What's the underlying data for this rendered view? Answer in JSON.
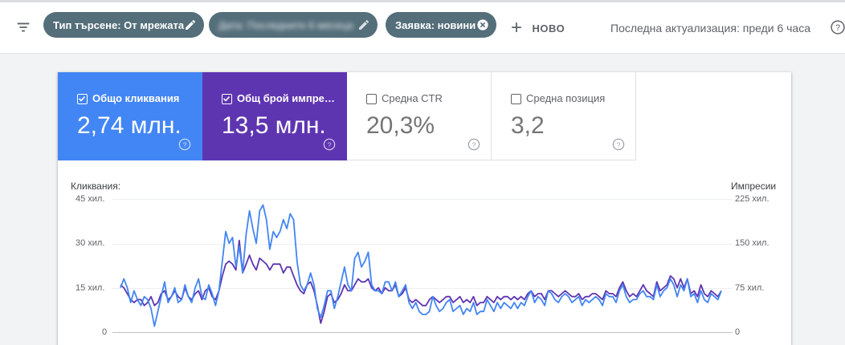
{
  "filters": {
    "chips": [
      {
        "label": "Тип търсене: От мрежата",
        "icon": "edit-icon"
      },
      {
        "label": "Дата: Последните 6 месеца",
        "icon": "edit-icon",
        "blurred": true
      },
      {
        "label": "Заявка: новини",
        "icon": "close-circle-icon"
      }
    ],
    "new_label": "НОВО",
    "last_update": "Последна актуализация: преди 6 часа"
  },
  "metrics": [
    {
      "label": "Общо кликвания",
      "value": "2,74 млн.",
      "checked": true,
      "color": "#4285f4"
    },
    {
      "label": "Общ брой импре…",
      "value": "13,5 млн.",
      "checked": true,
      "color": "#5e35b1"
    },
    {
      "label": "Средна CTR",
      "value": "20,3%",
      "checked": false
    },
    {
      "label": "Средна позиция",
      "value": "3,2",
      "checked": false
    }
  ],
  "chart": {
    "left_title": "Кликвания:",
    "right_title": "Импресии",
    "left_ticks": [
      "45 хил.",
      "30 хил.",
      "15 хил.",
      "0"
    ],
    "right_ticks": [
      "225 хил.",
      "150 хил.",
      "75 хил.",
      "0"
    ]
  },
  "chart_data": {
    "type": "line",
    "y_left": {
      "label": "Кликвания:",
      "range": [
        0,
        45000
      ]
    },
    "y_right": {
      "label": "Импресии",
      "range": [
        0,
        225000
      ]
    },
    "series": [
      {
        "name": "Общо кликвания",
        "axis": "left",
        "color": "#4285f4",
        "values": [
          15000,
          18000,
          15000,
          10000,
          14000,
          11000,
          9000,
          12000,
          11000,
          8000,
          2000,
          7000,
          12000,
          17000,
          10000,
          12000,
          15000,
          10000,
          11000,
          16000,
          12000,
          10000,
          15000,
          18000,
          12000,
          11000,
          16000,
          13000,
          9000,
          14000,
          24000,
          34000,
          30000,
          32000,
          22000,
          29000,
          20000,
          33000,
          41000,
          35000,
          30000,
          41000,
          43000,
          38000,
          28000,
          34000,
          32000,
          34000,
          38000,
          35000,
          40000,
          38000,
          24000,
          16000,
          14000,
          16000,
          20000,
          16000,
          8000,
          5000,
          9000,
          14000,
          14000,
          8000,
          12000,
          17000,
          22000,
          16000,
          14000,
          25000,
          27000,
          22000,
          24000,
          27000,
          16000,
          14000,
          14000,
          13000,
          17000,
          17000,
          14000,
          17000,
          12000,
          14000,
          16000,
          10000,
          8000,
          10000,
          7000,
          6000,
          6000,
          7000,
          12000,
          9000,
          7000,
          8000,
          10000,
          11000,
          7000,
          8000,
          9000,
          6000,
          8000,
          7000,
          10000,
          6000,
          7000,
          7000,
          11000,
          9000,
          7000,
          10000,
          8000,
          10000,
          9000,
          8000,
          10000,
          8000,
          10000,
          9000,
          12000,
          14000,
          10000,
          12000,
          11000,
          9000,
          14000,
          13000,
          11000,
          10000,
          12000,
          13000,
          12000,
          10000,
          11000,
          12000,
          9000,
          11000,
          10000,
          11000,
          12000,
          11000,
          9000,
          13000,
          12000,
          12000,
          10000,
          14000,
          16000,
          12000,
          10000,
          11000,
          11000,
          13000,
          14000,
          12000,
          12000,
          11000,
          16000,
          12000,
          14000,
          15000,
          18000,
          16000,
          12000,
          16000,
          14000,
          18000,
          12000,
          13000,
          10000,
          14000,
          11000,
          10000,
          13000,
          12000,
          11000,
          14000
        ]
      },
      {
        "name": "Общ брой импресии",
        "axis": "right",
        "color": "#5e35b1",
        "values": [
          80000,
          75000,
          65000,
          55000,
          50000,
          55000,
          55000,
          45000,
          50000,
          60000,
          45000,
          50000,
          65000,
          70000,
          55000,
          60000,
          70000,
          60000,
          55000,
          75000,
          60000,
          55000,
          65000,
          70000,
          55000,
          70000,
          75000,
          60000,
          55000,
          70000,
          95000,
          115000,
          120000,
          115000,
          105000,
          155000,
          100000,
          115000,
          130000,
          115000,
          105000,
          125000,
          120000,
          115000,
          105000,
          115000,
          115000,
          115000,
          100000,
          110000,
          110000,
          95000,
          80000,
          70000,
          65000,
          80000,
          85000,
          70000,
          45000,
          15000,
          35000,
          60000,
          65000,
          50000,
          55000,
          65000,
          80000,
          70000,
          70000,
          80000,
          90000,
          85000,
          85000,
          90000,
          75000,
          70000,
          75000,
          65000,
          75000,
          70000,
          70000,
          80000,
          60000,
          65000,
          75000,
          55000,
          50000,
          55000,
          50000,
          45000,
          45000,
          55000,
          60000,
          55000,
          50000,
          55000,
          60000,
          60000,
          50000,
          55000,
          60000,
          50000,
          55000,
          50000,
          60000,
          45000,
          50000,
          50000,
          60000,
          55000,
          50000,
          60000,
          55000,
          60000,
          60000,
          55000,
          60000,
          55000,
          60000,
          55000,
          65000,
          70000,
          60000,
          65000,
          65000,
          55000,
          70000,
          70000,
          65000,
          60000,
          65000,
          70000,
          65000,
          60000,
          60000,
          65000,
          55000,
          60000,
          60000,
          65000,
          65000,
          60000,
          55000,
          70000,
          65000,
          65000,
          60000,
          75000,
          85000,
          70000,
          60000,
          65000,
          60000,
          70000,
          80000,
          70000,
          65000,
          60000,
          85000,
          70000,
          75000,
          80000,
          95000,
          90000,
          75000,
          90000,
          75000,
          90000,
          65000,
          70000,
          60000,
          80000,
          65000,
          60000,
          70000,
          65000,
          60000,
          70000
        ]
      }
    ]
  },
  "colors": {
    "chip_bg": "#546e7a",
    "clicks": "#4285f4",
    "impressions": "#5e35b1"
  }
}
